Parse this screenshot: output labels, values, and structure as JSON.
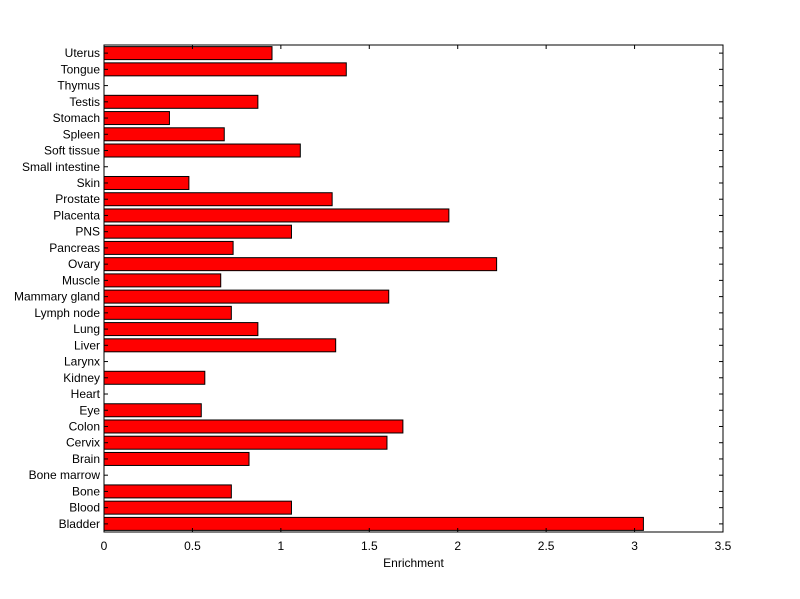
{
  "chart_data": {
    "type": "bar",
    "orientation": "horizontal",
    "title": "",
    "xlabel": "Enrichment",
    "ylabel": "",
    "xlim": [
      0,
      3.5
    ],
    "xticks": [
      "0",
      "0.5",
      "1",
      "1.5",
      "2",
      "2.5",
      "3",
      "3.5"
    ],
    "grid": false,
    "bar_color": "#ff0000",
    "bar_edge_color": "#000000",
    "categories": [
      "Bladder",
      "Blood",
      "Bone",
      "Bone marrow",
      "Brain",
      "Cervix",
      "Colon",
      "Eye",
      "Heart",
      "Kidney",
      "Larynx",
      "Liver",
      "Lung",
      "Lymph node",
      "Mammary gland",
      "Muscle",
      "Ovary",
      "Pancreas",
      "PNS",
      "Placenta",
      "Prostate",
      "Skin",
      "Small intestine",
      "Soft tissue",
      "Spleen",
      "Stomach",
      "Testis",
      "Thymus",
      "Tongue",
      "Uterus"
    ],
    "values": [
      3.05,
      1.06,
      0.72,
      0,
      0.82,
      1.6,
      1.69,
      0.55,
      0,
      0.57,
      0,
      1.31,
      0.87,
      0.72,
      1.61,
      0.66,
      2.22,
      0.73,
      1.06,
      1.95,
      1.29,
      0.48,
      0,
      1.11,
      0.68,
      0.37,
      0.87,
      0,
      1.37,
      0.95
    ]
  }
}
